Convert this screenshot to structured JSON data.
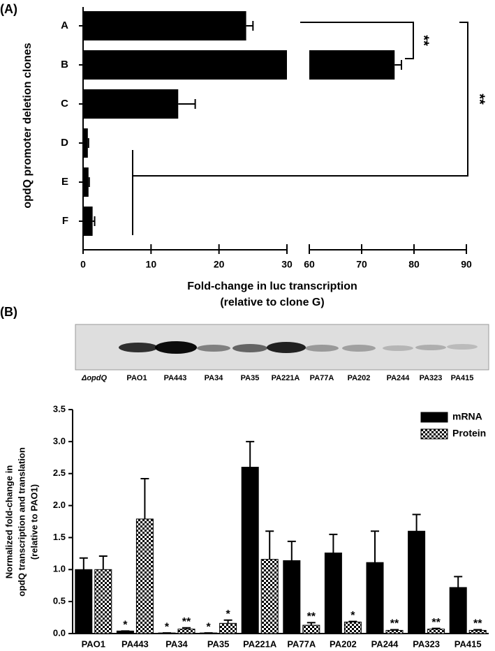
{
  "chart_data": [
    {
      "type": "hbar",
      "panel_label": "(A)",
      "ylabel": "opdQ promoter deletion clones",
      "xlabel": [
        "Fold-change in luc transcription",
        "(relative to clone G)"
      ],
      "categories": [
        "A",
        "B",
        "C",
        "D",
        "E",
        "F"
      ],
      "values": [
        24,
        76.3,
        14,
        0.7,
        0.8,
        1.4
      ],
      "errors": [
        1,
        1.3,
        2.5,
        0.1,
        0.1,
        0.3
      ],
      "color": "#000000",
      "xlim": [
        0,
        90
      ],
      "xbreak": [
        30,
        60
      ],
      "xticks": [
        0,
        10,
        20,
        30,
        60,
        70,
        80,
        90
      ],
      "annotations": [
        "**",
        "**"
      ]
    },
    {
      "type": "bar",
      "panel_label": "(B)",
      "ylabel": [
        "Normalized fold-change in",
        "opdQ transcription and translation",
        "(relative to PAO1)"
      ],
      "categories": [
        "PAO1",
        "PA443",
        "PA34",
        "PA35",
        "PA221A",
        "PA77A",
        "PA202",
        "PA244",
        "PA323",
        "PA415"
      ],
      "series": [
        {
          "name": "mRNA",
          "color": "#000000",
          "pattern": "solid",
          "values": [
            1.0,
            0.04,
            0.01,
            0.01,
            2.6,
            1.14,
            1.26,
            1.11,
            1.6,
            0.72
          ],
          "errors": [
            0.18,
            0,
            0,
            0,
            0.4,
            0.3,
            0.29,
            0.49,
            0.26,
            0.17
          ],
          "significance": [
            null,
            "*",
            "*",
            "*",
            null,
            null,
            null,
            null,
            null,
            null
          ]
        },
        {
          "name": "Protein",
          "color": "#000000",
          "pattern": "checker",
          "values": [
            1.0,
            1.79,
            0.07,
            0.16,
            1.16,
            0.13,
            0.18,
            0.05,
            0.07,
            0.05
          ],
          "errors": [
            0.21,
            0.63,
            0.02,
            0.05,
            0.44,
            0.04,
            0.01,
            0.01,
            0.01,
            0.01
          ],
          "significance": [
            null,
            null,
            "**",
            "*",
            null,
            "**",
            "*",
            "**",
            "**",
            "**"
          ]
        }
      ],
      "ylim": [
        0,
        3.5
      ],
      "yticks": [
        {
          "value": 0,
          "label": "0.0"
        },
        0.5,
        {
          "value": 1,
          "label": "1.0"
        },
        1.5,
        {
          "value": 2,
          "label": "2.0"
        },
        2.5,
        {
          "value": 3,
          "label": "3.0"
        },
        3.5
      ],
      "legend": "upper right"
    }
  ],
  "blot": {
    "lanes": [
      "ΔopdQ",
      "PAO1",
      "PA443",
      "PA34",
      "PA35",
      "PA221A",
      "PA77A",
      "PA202",
      "PA244",
      "PA323",
      "PA415"
    ]
  }
}
